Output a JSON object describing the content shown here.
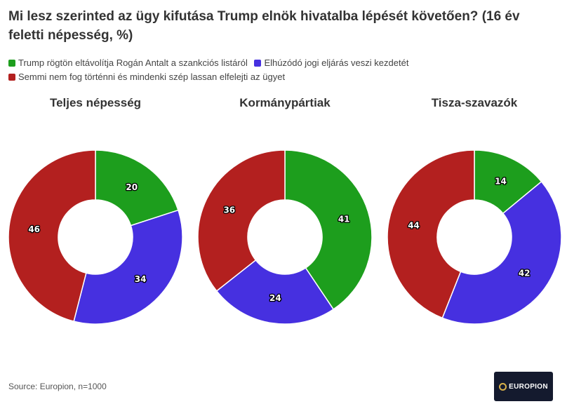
{
  "title": "Mi lesz szerinted az ügy kifutása Trump elnök hivatalba lépését követően? (16 év feletti népesség, %)",
  "legend": [
    {
      "label": "Trump rögtön eltávolítja Rogán Antalt a szankciós listáról",
      "color": "#1d9e1d"
    },
    {
      "label": "Elhúzódó jogi eljárás veszi kezdetét",
      "color": "#4630e0"
    },
    {
      "label": "Semmi nem fog történni és mindenki szép lassan elfelejti az ügyet",
      "color": "#b3201f"
    }
  ],
  "chart_data": [
    {
      "type": "pie",
      "title": "Teljes népesség",
      "categories": [
        "Trump rögtön eltávolítja Rogán Antalt a szankciós listáról",
        "Elhúzódó jogi eljárás veszi kezdetét",
        "Semmi nem fog történni és mindenki szép lassan elfelejti az ügyet"
      ],
      "values": [
        20,
        34,
        46
      ],
      "colors": [
        "#1d9e1d",
        "#4630e0",
        "#b3201f"
      ]
    },
    {
      "type": "pie",
      "title": "Kormánypártiak",
      "categories": [
        "Trump rögtön eltávolítja Rogán Antalt a szankciós listáról",
        "Elhúzódó jogi eljárás veszi kezdetét",
        "Semmi nem fog történni és mindenki szép lassan elfelejti az ügyet"
      ],
      "values": [
        41,
        24,
        36
      ],
      "colors": [
        "#1d9e1d",
        "#4630e0",
        "#b3201f"
      ]
    },
    {
      "type": "pie",
      "title": "Tisza-szavazók",
      "categories": [
        "Trump rögtön eltávolítja Rogán Antalt a szankciós listáról",
        "Elhúzódó jogi eljárás veszi kezdetét",
        "Semmi nem fog történni és mindenki szép lassan elfelejti az ügyet"
      ],
      "values": [
        14,
        42,
        44
      ],
      "colors": [
        "#1d9e1d",
        "#4630e0",
        "#b3201f"
      ]
    }
  ],
  "source": "Source: Europion, n=1000",
  "logo": {
    "text": "EUROPION"
  }
}
